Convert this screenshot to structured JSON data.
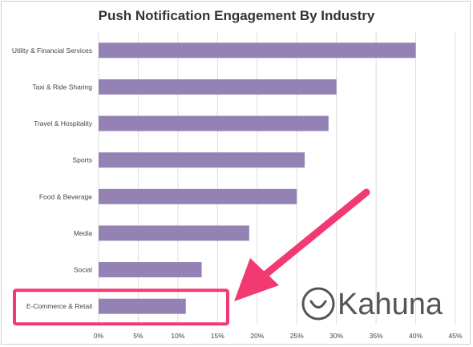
{
  "chart_data": {
    "type": "bar",
    "orientation": "horizontal",
    "title": "Push Notification Engagement By Industry",
    "categories": [
      "Utility & Financial Services",
      "Taxi & Ride Sharing",
      "Travel & Hospitality",
      "Sports",
      "Food & Beverage",
      "Media",
      "Social",
      "E-Commerce & Retail"
    ],
    "values": [
      40,
      30,
      29,
      26,
      25,
      19,
      13,
      11
    ],
    "xlim": [
      0,
      45
    ],
    "xticks": [
      "0%",
      "5%",
      "10%",
      "15%",
      "20%",
      "25%",
      "30%",
      "35%",
      "40%",
      "45%"
    ],
    "grid": true,
    "bar_color": "#9482b5",
    "annotation": {
      "highlighted_category": "E-Commerce & Retail",
      "highlight_color": "#f23a72",
      "arrow_color": "#f23a72"
    }
  },
  "watermark": {
    "text": "Kahuna",
    "color": "#555555"
  }
}
